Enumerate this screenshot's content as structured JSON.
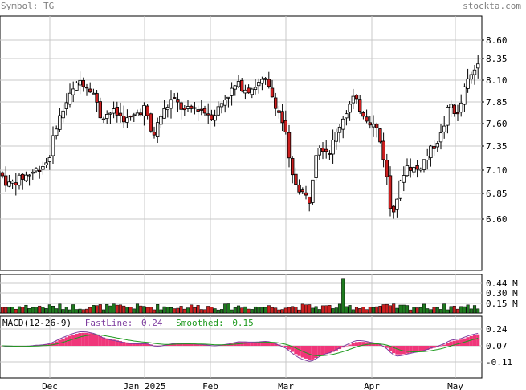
{
  "header": {
    "symbol_prefix": "Symbol:",
    "symbol": "TG",
    "site": "stockta.com"
  },
  "colors": {
    "up": "#ffffff",
    "down": "#cc1f1f",
    "vol_up": "#1e7a1e",
    "vol_down": "#cc1f1f",
    "grid": "#c8c8c8",
    "hist": "#f0367a",
    "fast": "#7e3d9f",
    "smooth": "#1f9a1f"
  },
  "price_axis": {
    "ticks": [
      "8.60",
      "8.35",
      "8.10",
      "7.85",
      "7.60",
      "7.35",
      "7.10",
      "6.85",
      "6.60"
    ],
    "min": 6.0,
    "max": 8.7
  },
  "volume_axis": {
    "ticks": [
      "0.44 M",
      "0.30 M",
      "0.15 M"
    ],
    "max": 0.5
  },
  "macd": {
    "label": "MACD(12-26-9)",
    "fast_label": "FastLine:",
    "fast_value": "0.24",
    "smooth_label": "Smoothed:",
    "smooth_value": "0.15",
    "ticks": [
      "0.24",
      "0.07",
      "-0.11"
    ]
  },
  "x_axis": {
    "labels": [
      "Dec",
      "Jan 2025",
      "Feb",
      "Mar",
      "Apr",
      "May"
    ]
  },
  "chart_data": {
    "type": "candlestick",
    "title": "Symbol: TG",
    "series_close_approx": [
      {
        "month": "Dec",
        "close": 7.05
      },
      {
        "month": "Jan 2025",
        "close": 7.8
      },
      {
        "month": "Feb",
        "close": 7.85
      },
      {
        "month": "Mar",
        "close": 6.85
      },
      {
        "month": "Apr",
        "close": 7.75
      },
      {
        "month": "May",
        "close": 8.4
      }
    ],
    "ylim": [
      6.4,
      8.7
    ],
    "volume_ylim": [
      0,
      0.5
    ]
  }
}
